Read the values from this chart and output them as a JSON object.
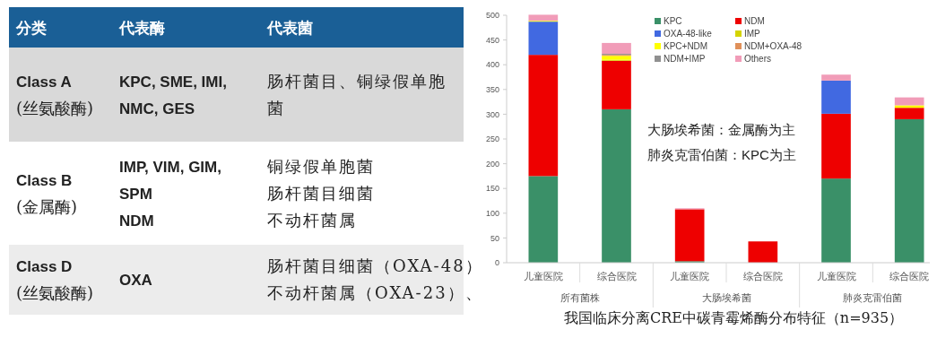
{
  "chart_data": [
    {
      "type": "other",
      "categories": [
        "分类",
        "代表酶",
        "代表菌"
      ],
      "cell_labels": [
        [
          "Class A\n(丝氨酸酶)",
          "KPC, SME, IMI,\nNMC, GES",
          "肠杆菌目、铜绿假单胞菌"
        ],
        [
          "Class B\n(金属酶)",
          "IMP, VIM, GIM,\nSPM\nNDM",
          [
            "铜绿假单胞菌",
            "肠杆菌目细菌",
            "不动杆菌属"
          ]
        ],
        [
          "Class D\n(丝氨酸酶)",
          "OXA",
          [
            "肠杆菌目细菌（OXA-48）",
            "不动杆菌属（OXA-23）、"
          ]
        ]
      ]
    },
    {
      "type": "bar",
      "stacked": true,
      "title": "我国临床分离CRE中碳青霉烯酶分布特征（n=935）",
      "categories": [
        "儿童医院",
        "综合医院",
        "儿童医院",
        "综合医院",
        "儿童医院",
        "综合医院"
      ],
      "series": [
        {
          "name": "KPC",
          "color": "#3a9068",
          "values": [
            175,
            310,
            3,
            0,
            170,
            290
          ]
        },
        {
          "name": "NDM",
          "color": "#ee0000",
          "values": [
            245,
            98,
            105,
            43,
            131,
            23
          ]
        },
        {
          "name": "OXA-48-like",
          "color": "#4169e1",
          "values": [
            67,
            0,
            0,
            0,
            67,
            0
          ]
        },
        {
          "name": "IMP",
          "color": "#d4d400",
          "values": [
            1,
            2,
            0,
            0,
            null,
            0
          ]
        },
        {
          "name": "KPC+NDM",
          "color": "#ffff00",
          "values": [
            1,
            8,
            0,
            0,
            0,
            5
          ]
        },
        {
          "name": "NDM+OXA-48",
          "color": "#e0905a",
          "values": [
            null,
            2,
            0,
            0,
            0,
            0
          ]
        },
        {
          "name": "NDM+IMP",
          "color": "#909090",
          "values": [
            0,
            2,
            0,
            0,
            0,
            null
          ]
        },
        {
          "name": "Others",
          "color": "#f19cb8",
          "values": [
            12,
            22,
            2,
            0,
            12,
            16
          ]
        }
      ],
      "ylim": [
        0,
        500
      ],
      "yticks": [
        0,
        50,
        100,
        150,
        200,
        250,
        300,
        350,
        400,
        450,
        500
      ],
      "legend": "top",
      "annotations": [
        "所有菌株",
        "大肠埃希菌",
        "肺炎克雷伯菌",
        "大肠埃希菌：金属酶为主",
        "肺炎克雷伯菌：KPC为主"
      ]
    }
  ]
}
